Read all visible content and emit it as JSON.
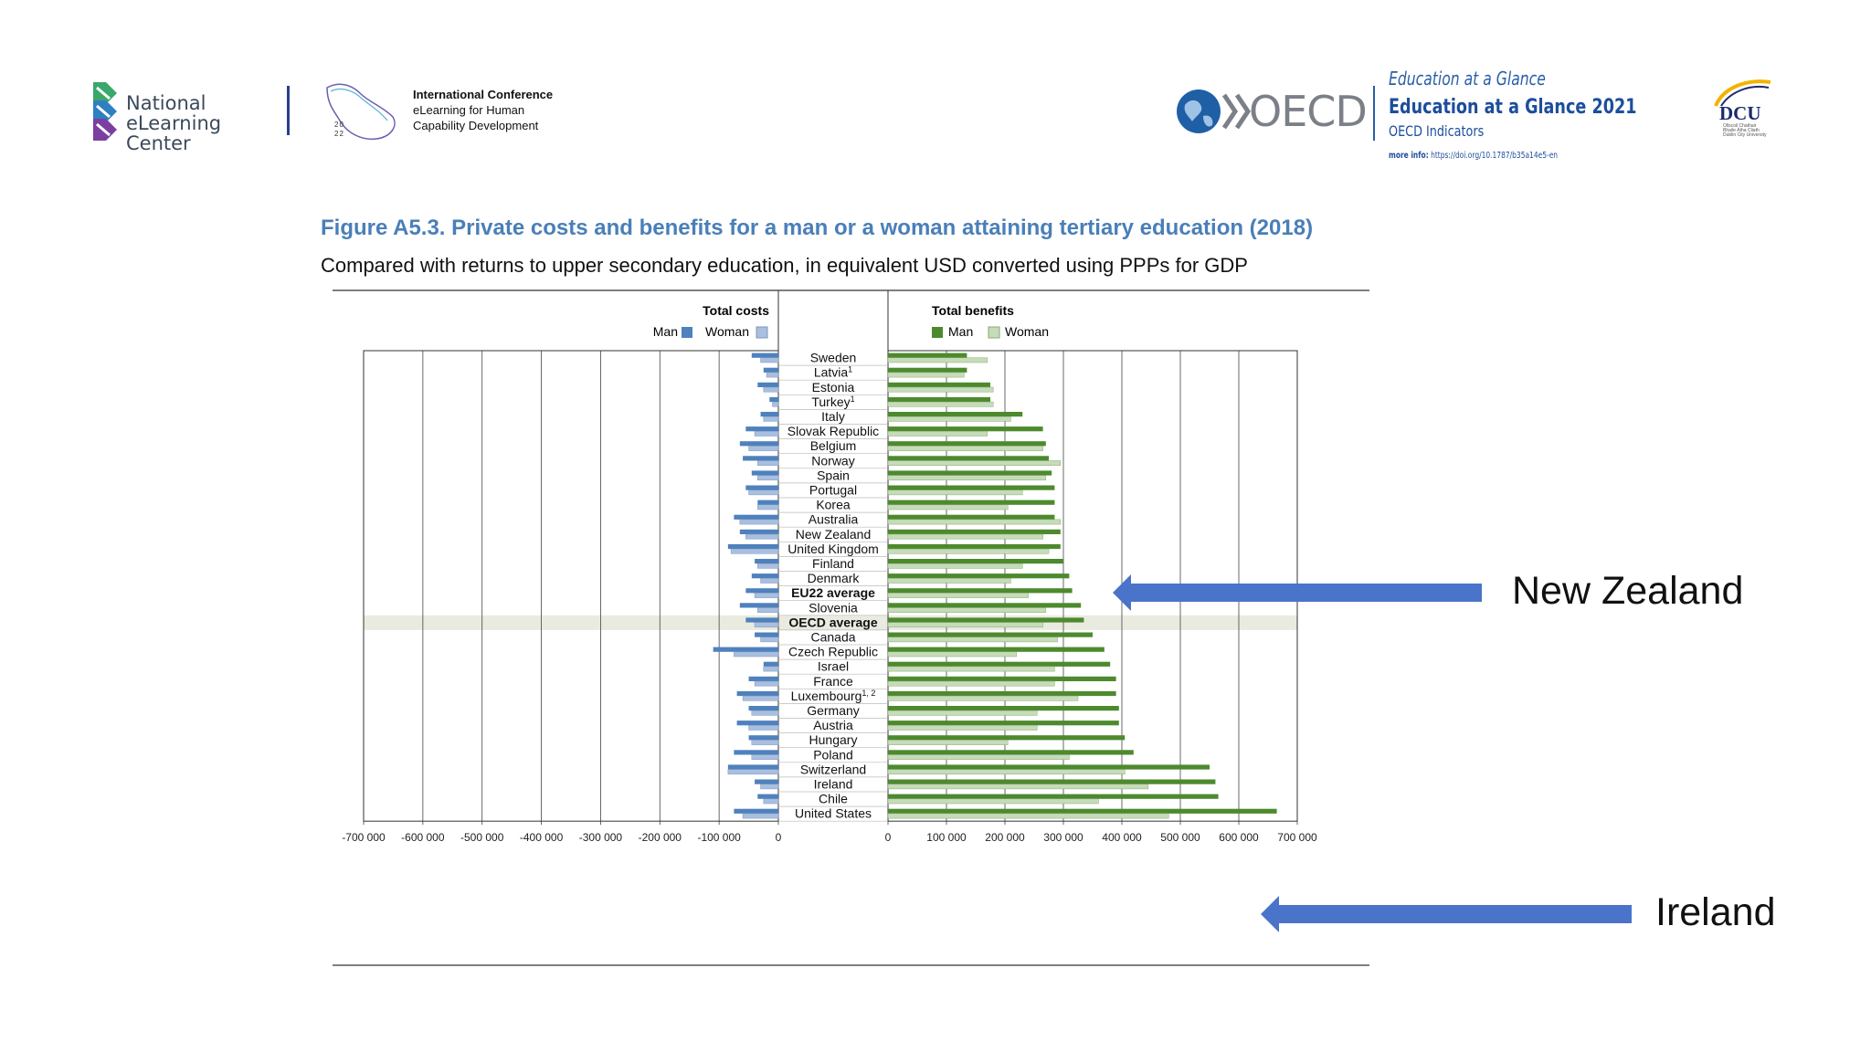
{
  "header": {
    "nelc_logo_text": [
      "National",
      "eLearning Center"
    ],
    "conference": {
      "lines": [
        "International Conference",
        "eLearning for Human",
        "Capability Development"
      ],
      "year_digits": [
        "20",
        "22"
      ]
    },
    "oecd_logo_text": "OECD",
    "eag": {
      "cover_title": "Education at a Glance",
      "title": "Education at a Glance 2021",
      "subtitle": "OECD Indicators",
      "more_info_label": "more info:",
      "more_info_url": "https://doi.org/10.1787/b35a14e5-en"
    },
    "dcu_logo_text": "DCU",
    "dcu_small_text": [
      "Ollscoil Chathair",
      "Bhaile Átha Cliath",
      "Dublin City University"
    ]
  },
  "figure": {
    "title": "Figure A5.3. Private costs and benefits for a man or a woman attaining tertiary education (2018)",
    "subtitle": "Compared with returns to upper secondary education, in equivalent USD converted using PPPs for GDP"
  },
  "annotations": {
    "new_zealand": "New Zealand",
    "ireland": "Ireland"
  },
  "colors": {
    "cost_man": "#4f81bd",
    "cost_woman": "#a9bfdf",
    "benefit_man": "#4d8a2e",
    "benefit_woman": "#c6dcb8",
    "arrow": "#4a74c9",
    "highlight_row": "#e9ebe0",
    "title_blue": "#4a7fb8"
  },
  "chart_data": {
    "type": "bar",
    "orientation": "horizontal",
    "units": "equivalent USD (PPP)",
    "left_panel": {
      "title": "Total costs",
      "legend": [
        "Man",
        "Woman"
      ],
      "xlim": [
        -700000,
        0
      ],
      "ticks": [
        -700000,
        -600000,
        -500000,
        -400000,
        -300000,
        -200000,
        -100000,
        0
      ],
      "tick_labels": [
        "-700 000",
        "-600 000",
        "-500 000",
        "-400 000",
        "-300 000",
        "-200 000",
        "-100 000",
        "0"
      ]
    },
    "right_panel": {
      "title": "Total benefits",
      "legend": [
        "Man",
        "Woman"
      ],
      "xlim": [
        0,
        700000
      ],
      "ticks": [
        0,
        100000,
        200000,
        300000,
        400000,
        500000,
        600000,
        700000
      ],
      "tick_labels": [
        "0",
        "100 000",
        "200 000",
        "300 000",
        "400 000",
        "500 000",
        "600 000",
        "700 000"
      ]
    },
    "categories": [
      "Sweden",
      "Latvia",
      "Estonia",
      "Turkey",
      "Italy",
      "Slovak Republic",
      "Belgium",
      "Norway",
      "Spain",
      "Portugal",
      "Korea",
      "Australia",
      "New Zealand",
      "United Kingdom",
      "Finland",
      "Denmark",
      "EU22 average",
      "Slovenia",
      "OECD average",
      "Canada",
      "Czech Republic",
      "Israel",
      "France",
      "Luxembourg",
      "Germany",
      "Austria",
      "Hungary",
      "Poland",
      "Switzerland",
      "Ireland",
      "Chile",
      "United States"
    ],
    "category_superscripts": [
      "",
      "1",
      "",
      "1",
      "",
      "",
      "",
      "",
      "",
      "",
      "",
      "",
      "",
      "",
      "",
      "",
      "",
      "",
      "",
      "",
      "",
      "",
      "",
      "1, 2",
      "",
      "",
      "",
      "",
      "",
      "",
      "",
      ""
    ],
    "bold_categories": [
      "EU22 average",
      "OECD average"
    ],
    "highlighted_category": "OECD average",
    "series": [
      {
        "name": "Total costs - Man",
        "values": [
          -45000,
          -25000,
          -35000,
          -15000,
          -30000,
          -55000,
          -65000,
          -60000,
          -45000,
          -55000,
          -35000,
          -75000,
          -65000,
          -85000,
          -40000,
          -45000,
          -55000,
          -65000,
          -55000,
          -40000,
          -110000,
          -25000,
          -50000,
          -70000,
          -50000,
          -70000,
          -50000,
          -75000,
          -85000,
          -40000,
          -35000,
          -75000
        ]
      },
      {
        "name": "Total costs - Woman",
        "values": [
          -30000,
          -20000,
          -25000,
          -10000,
          -25000,
          -40000,
          -50000,
          -35000,
          -35000,
          -50000,
          -35000,
          -65000,
          -55000,
          -80000,
          -35000,
          -30000,
          -40000,
          -35000,
          -40000,
          -30000,
          -75000,
          -25000,
          -40000,
          -60000,
          -45000,
          -50000,
          -45000,
          -45000,
          -85000,
          -30000,
          -25000,
          -60000
        ]
      },
      {
        "name": "Total benefits - Man",
        "values": [
          135000,
          135000,
          175000,
          175000,
          230000,
          265000,
          270000,
          275000,
          280000,
          285000,
          285000,
          285000,
          295000,
          295000,
          300000,
          310000,
          315000,
          330000,
          335000,
          350000,
          370000,
          380000,
          390000,
          390000,
          395000,
          395000,
          405000,
          420000,
          550000,
          560000,
          565000,
          665000
        ]
      },
      {
        "name": "Total benefits - Woman",
        "values": [
          170000,
          130000,
          180000,
          180000,
          210000,
          170000,
          265000,
          295000,
          270000,
          230000,
          205000,
          295000,
          265000,
          275000,
          230000,
          210000,
          240000,
          270000,
          265000,
          290000,
          220000,
          285000,
          285000,
          325000,
          255000,
          255000,
          205000,
          310000,
          405000,
          445000,
          360000,
          480000
        ]
      }
    ]
  }
}
